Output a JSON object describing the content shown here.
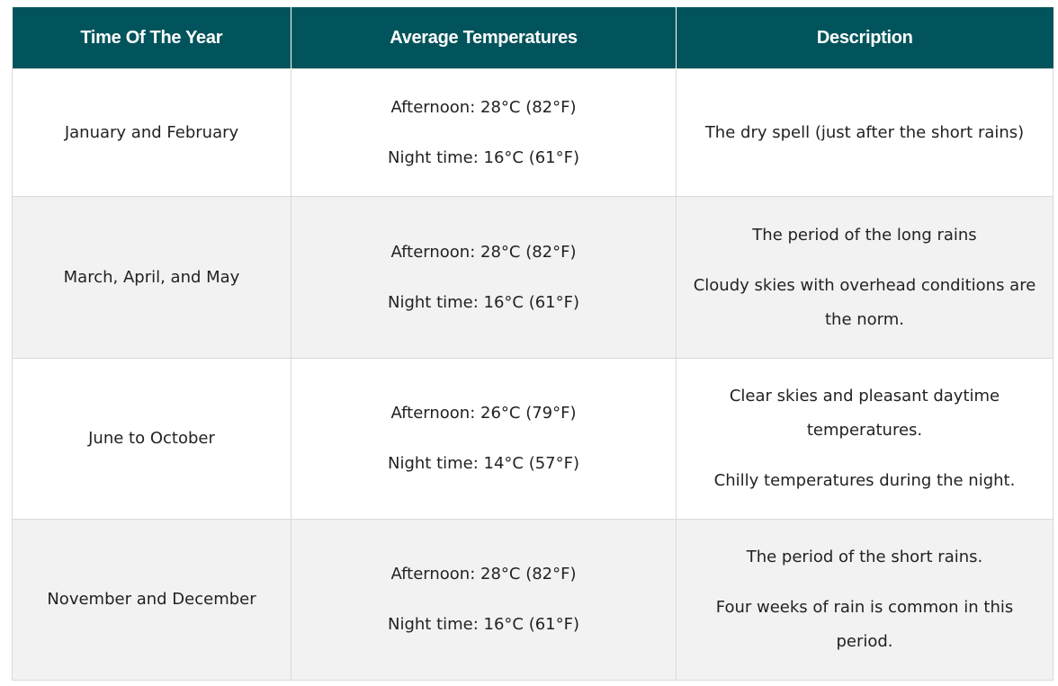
{
  "table": {
    "headers": [
      "Time Of The Year",
      "Average Temperatures",
      "Description"
    ],
    "rows": [
      {
        "period": "January and February",
        "afternoon": "Afternoon: 28°C (82°F)",
        "night": "Night time: 16°C (61°F)",
        "description": [
          "The dry spell (just after the short rains)"
        ]
      },
      {
        "period": "March, April, and May",
        "afternoon": "Afternoon: 28°C (82°F)",
        "night": "Night time: 16°C (61°F)",
        "description": [
          "The period of the long rains",
          "Cloudy skies with overhead conditions are the norm."
        ]
      },
      {
        "period": "June to October",
        "afternoon": "Afternoon: 26°C (79°F)",
        "night": "Night time: 14°C (57°F)",
        "description": [
          "Clear skies and pleasant daytime temperatures.",
          "Chilly temperatures during the night."
        ]
      },
      {
        "period": "November and December",
        "afternoon": "Afternoon: 28°C (82°F)",
        "night": "Night time: 16°C (61°F)",
        "description": [
          "The period of the short rains.",
          "Four weeks of rain is common in this period."
        ]
      }
    ]
  },
  "colors": {
    "header_bg": "#02545c",
    "header_text": "#ffffff",
    "row_alt_bg": "#f2f2f2",
    "border": "#d9d9d9"
  }
}
